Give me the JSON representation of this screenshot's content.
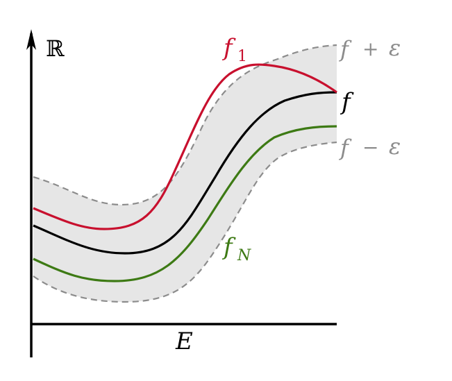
{
  "axes": {
    "y_label": "ℝ",
    "x_label": "E"
  },
  "curves": [
    {
      "id": "f_plus_eps",
      "label_main": "f",
      "label_op": "+",
      "label_var": "ε",
      "color": "#8c8c8c",
      "style": "dashed"
    },
    {
      "id": "f1",
      "label_main": "f",
      "label_sub": "1",
      "color": "#c8102e",
      "style": "solid"
    },
    {
      "id": "f",
      "label_main": "f",
      "color": "#000000",
      "style": "solid"
    },
    {
      "id": "fN",
      "label_main": "f",
      "label_sub": "N",
      "color": "#3d7a14",
      "style": "solid"
    },
    {
      "id": "f_minus_eps",
      "label_main": "f",
      "label_op": "−",
      "label_var": "ε",
      "color": "#8c8c8c",
      "style": "dashed"
    }
  ],
  "band_fill": "#e6e6e6"
}
